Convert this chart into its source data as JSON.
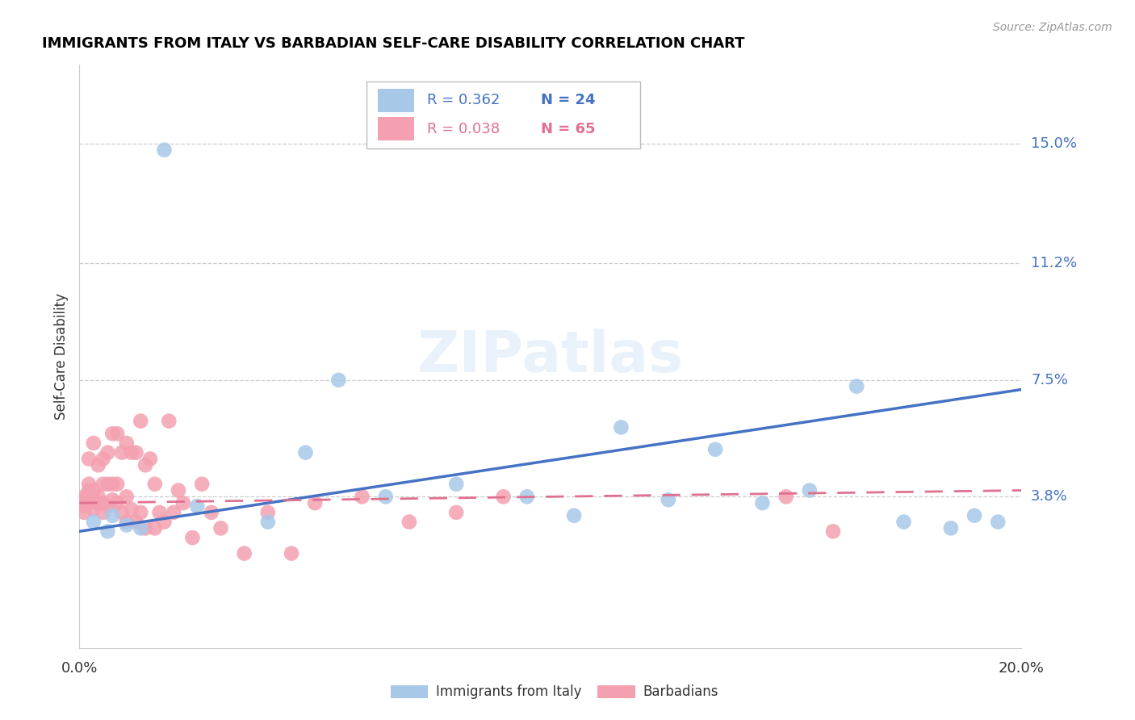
{
  "title": "IMMIGRANTS FROM ITALY VS BARBADIAN SELF-CARE DISABILITY CORRELATION CHART",
  "source": "Source: ZipAtlas.com",
  "ylabel": "Self-Care Disability",
  "ytick_labels": [
    "15.0%",
    "11.2%",
    "7.5%",
    "3.8%"
  ],
  "ytick_values": [
    0.15,
    0.112,
    0.075,
    0.038
  ],
  "xlim": [
    0.0,
    0.2
  ],
  "ylim": [
    -0.01,
    0.175
  ],
  "legend_blue_R": "R = 0.362",
  "legend_blue_N": "N = 24",
  "legend_pink_R": "R = 0.038",
  "legend_pink_N": "N = 65",
  "legend_label_blue": "Immigrants from Italy",
  "legend_label_pink": "Barbadians",
  "blue_color": "#a8c8e8",
  "blue_line_color": "#4472c4",
  "pink_color": "#f4a0b0",
  "pink_line_color": "#e07090",
  "watermark_text": "ZIPatlas",
  "blue_scatter_x": [
    0.018,
    0.003,
    0.006,
    0.01,
    0.007,
    0.013,
    0.025,
    0.04,
    0.048,
    0.055,
    0.065,
    0.08,
    0.095,
    0.105,
    0.115,
    0.125,
    0.135,
    0.145,
    0.155,
    0.165,
    0.175,
    0.185,
    0.195,
    0.19
  ],
  "blue_scatter_y": [
    0.148,
    0.03,
    0.027,
    0.029,
    0.032,
    0.028,
    0.035,
    0.03,
    0.052,
    0.075,
    0.038,
    0.042,
    0.038,
    0.032,
    0.06,
    0.037,
    0.053,
    0.036,
    0.04,
    0.073,
    0.03,
    0.028,
    0.03,
    0.032
  ],
  "pink_scatter_x": [
    0.001,
    0.001,
    0.001,
    0.001,
    0.002,
    0.002,
    0.002,
    0.002,
    0.002,
    0.003,
    0.003,
    0.003,
    0.003,
    0.004,
    0.004,
    0.004,
    0.005,
    0.005,
    0.005,
    0.005,
    0.006,
    0.006,
    0.006,
    0.007,
    0.007,
    0.007,
    0.008,
    0.008,
    0.008,
    0.009,
    0.009,
    0.01,
    0.01,
    0.01,
    0.011,
    0.011,
    0.012,
    0.012,
    0.013,
    0.013,
    0.014,
    0.014,
    0.015,
    0.016,
    0.016,
    0.017,
    0.018,
    0.019,
    0.02,
    0.021,
    0.022,
    0.024,
    0.026,
    0.028,
    0.03,
    0.035,
    0.04,
    0.045,
    0.05,
    0.06,
    0.07,
    0.08,
    0.09,
    0.15,
    0.16
  ],
  "pink_scatter_y": [
    0.033,
    0.035,
    0.037,
    0.038,
    0.036,
    0.038,
    0.04,
    0.042,
    0.05,
    0.034,
    0.037,
    0.04,
    0.055,
    0.036,
    0.038,
    0.048,
    0.033,
    0.036,
    0.042,
    0.05,
    0.035,
    0.042,
    0.052,
    0.037,
    0.042,
    0.058,
    0.036,
    0.042,
    0.058,
    0.033,
    0.052,
    0.03,
    0.038,
    0.055,
    0.034,
    0.052,
    0.03,
    0.052,
    0.033,
    0.062,
    0.028,
    0.048,
    0.05,
    0.028,
    0.042,
    0.033,
    0.03,
    0.062,
    0.033,
    0.04,
    0.036,
    0.025,
    0.042,
    0.033,
    0.028,
    0.02,
    0.033,
    0.02,
    0.036,
    0.038,
    0.03,
    0.033,
    0.038,
    0.038,
    0.027
  ],
  "blue_line_x0": 0.0,
  "blue_line_x1": 0.2,
  "blue_line_y0": 0.027,
  "blue_line_y1": 0.072,
  "pink_line_x0": 0.0,
  "pink_line_x1": 0.2,
  "pink_line_y0": 0.036,
  "pink_line_y1": 0.04
}
